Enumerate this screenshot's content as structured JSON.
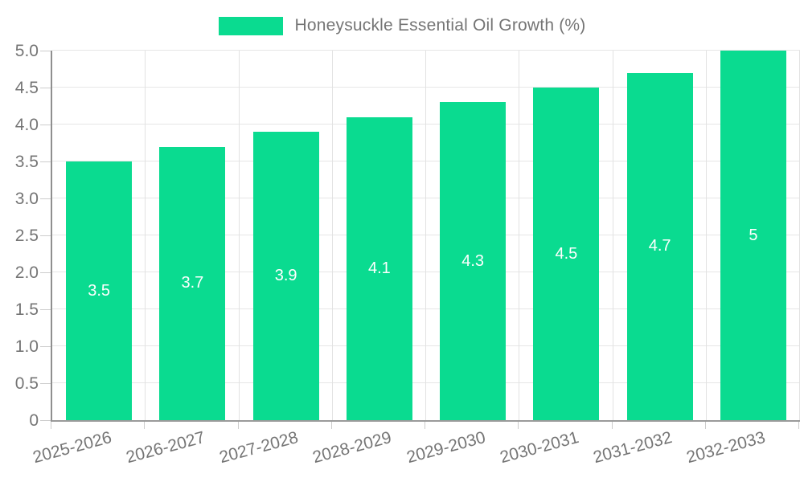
{
  "chart_data": {
    "type": "bar",
    "title": "Honeysuckle Essential Oil Growth (%)",
    "categories": [
      "2025-2026",
      "2026-2027",
      "2027-2028",
      "2028-2029",
      "2029-2030",
      "2030-2031",
      "2031-2032",
      "2032-2033"
    ],
    "values": [
      3.5,
      3.7,
      3.9,
      4.1,
      4.3,
      4.5,
      4.7,
      5
    ],
    "value_labels": [
      "3.5",
      "3.7",
      "3.9",
      "4.1",
      "4.3",
      "4.5",
      "4.7",
      "5"
    ],
    "xlabel": "",
    "ylabel": "",
    "ylim": [
      0,
      5
    ],
    "ytick_step": 0.5,
    "ytick_labels": [
      "0",
      "0.5",
      "1.0",
      "1.5",
      "2.0",
      "2.5",
      "3.0",
      "3.5",
      "4.0",
      "4.5",
      "5.0"
    ],
    "grid": true,
    "legend_position": "top-center",
    "colors": {
      "bar": "#0adb90",
      "bar_value_text": "#ffffff",
      "axis_text": "#757575",
      "grid_line": "#e6e6e6",
      "axis_line": "#949494",
      "tick_mark": "#cccccc"
    }
  }
}
